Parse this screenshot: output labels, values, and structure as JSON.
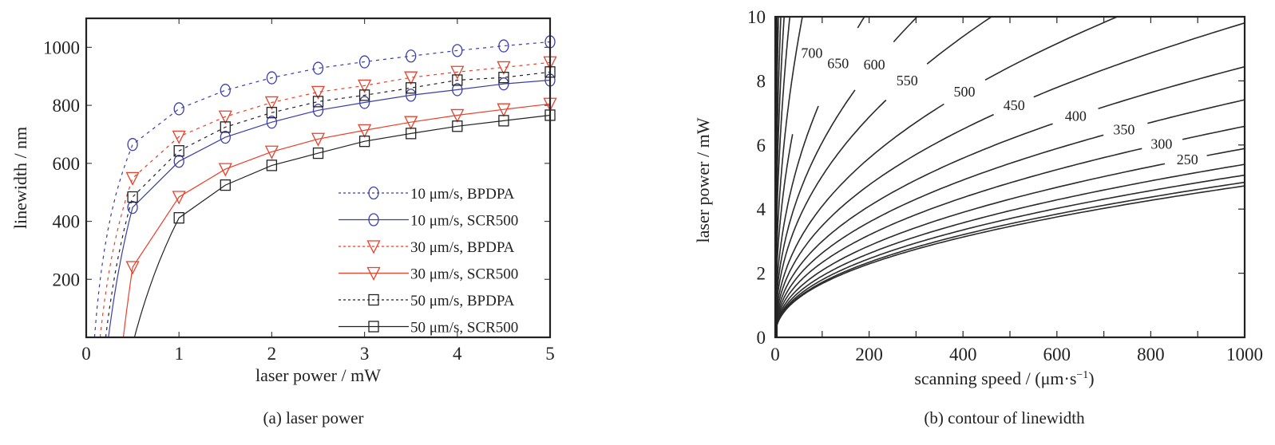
{
  "chart_data": [
    {
      "type": "line",
      "caption": "(a) laser power",
      "xlabel": "laser power / mW",
      "ylabel": "linewidth / nm",
      "xlim": [
        0,
        5
      ],
      "ylim": [
        0,
        1100
      ],
      "xticks": [
        "0",
        "1",
        "2",
        "3",
        "4",
        "5"
      ],
      "yticks": [
        "200",
        "400",
        "600",
        "800",
        "1000"
      ],
      "xtick_values": [
        0,
        1,
        2,
        3,
        4,
        5
      ],
      "ytick_values": [
        200,
        400,
        600,
        800,
        1000
      ],
      "legend_position": "bottom-right",
      "x": [
        0.5,
        1.0,
        1.5,
        2.0,
        2.5,
        3.0,
        3.5,
        4.0,
        4.5,
        5.0
      ],
      "series": [
        {
          "name": "10 μm/s, BPDPA",
          "label": "10 μm/s, BPDPA",
          "color": "#3a3ea8",
          "linestyle": "dotted",
          "marker": "circle",
          "threshold": 0.09,
          "values": [
            665,
            788,
            852,
            895,
            928,
            950,
            970,
            989,
            1005,
            1019
          ]
        },
        {
          "name": "10 μm/s, SCR500",
          "label": "10 μm/s, SCR500",
          "color": "#3a3ea8",
          "linestyle": "solid",
          "marker": "circle",
          "threshold": 0.24,
          "values": [
            448,
            607,
            690,
            742,
            783,
            810,
            835,
            854,
            874,
            887
          ]
        },
        {
          "name": "30 μm/s, BPDPA",
          "label": "30 μm/s, BPDPA",
          "color": "#e8402a",
          "linestyle": "dotted",
          "marker": "triangle-down",
          "threshold": 0.15,
          "values": [
            549,
            692,
            761,
            810,
            846,
            868,
            896,
            915,
            931,
            948
          ]
        },
        {
          "name": "30 μm/s, SCR500",
          "label": "30 μm/s, SCR500",
          "color": "#e8402a",
          "linestyle": "solid",
          "marker": "triangle-down",
          "threshold": 0.4,
          "values": [
            242,
            484,
            580,
            640,
            684,
            714,
            742,
            766,
            786,
            805
          ]
        },
        {
          "name": "50 μm/s, BPDPA",
          "label": "50 μm/s, BPDPA",
          "color": "#222222",
          "linestyle": "dotted",
          "marker": "square",
          "threshold": 0.21,
          "values": [
            484,
            643,
            725,
            775,
            813,
            835,
            860,
            887,
            896,
            915
          ]
        },
        {
          "name": "50 μm/s, SCR500",
          "label": "50 μm/s, SCR500",
          "color": "#222222",
          "linestyle": "solid",
          "marker": "square",
          "threshold": 0.52,
          "values": [
            null,
            412,
            525,
            593,
            635,
            676,
            703,
            728,
            747,
            766
          ]
        }
      ]
    },
    {
      "type": "contour",
      "caption": "(b) contour of linewidth",
      "xlabel_main": "scanning speed / (μm·s",
      "xlabel_sup": "−1",
      "xlabel_close": ")",
      "ylabel": "laser power / mW",
      "xlim": [
        0,
        1000
      ],
      "ylim": [
        0,
        10
      ],
      "xticks": [
        "0",
        "200",
        "400",
        "600",
        "800",
        "1000"
      ],
      "yticks": [
        "0",
        "2",
        "4",
        "6",
        "8",
        "10"
      ],
      "xtick_values": [
        0,
        200,
        400,
        600,
        800,
        1000
      ],
      "ytick_values": [
        0,
        2,
        4,
        6,
        8,
        10
      ],
      "minor_xtick_values": [
        100,
        300,
        500,
        700,
        900
      ],
      "exponent": 0.45,
      "levels": [
        {
          "value": 1000,
          "coef": 7.3
        },
        {
          "value": 950,
          "coef": 4.17
        },
        {
          "value": 900,
          "coef": 3.27
        },
        {
          "value": 850,
          "coef": 2.66
        },
        {
          "value": 800,
          "coef": 2.13
        },
        {
          "value": 750,
          "coef": 1.61
        },
        {
          "value": 700,
          "coef": 1.248,
          "label": "700",
          "label_x": 78
        },
        {
          "value": 650,
          "coef": 0.943,
          "label": "650",
          "label_x": 134
        },
        {
          "value": 600,
          "coef": 0.765,
          "label": "600",
          "label_x": 211
        },
        {
          "value": 550,
          "coef": 0.633,
          "label": "550",
          "label_x": 281
        },
        {
          "value": 500,
          "coef": 0.515,
          "label": "500",
          "label_x": 403
        },
        {
          "value": 450,
          "coef": 0.438,
          "label": "450",
          "label_x": 509
        },
        {
          "value": 400,
          "coef": 0.377,
          "label": "400",
          "label_x": 640
        },
        {
          "value": 350,
          "coef": 0.331,
          "label": "350",
          "label_x": 743
        },
        {
          "value": 300,
          "coef": 0.294,
          "label": "300",
          "label_x": 823
        },
        {
          "value": 250,
          "coef": 0.263,
          "label": "250",
          "label_x": 878
        },
        {
          "value": 200,
          "coef": 0.241
        },
        {
          "value": 150,
          "coef": 0.226
        },
        {
          "value": 100,
          "coef": 0.216
        },
        {
          "value": 50,
          "coef": 0.211
        }
      ]
    }
  ]
}
